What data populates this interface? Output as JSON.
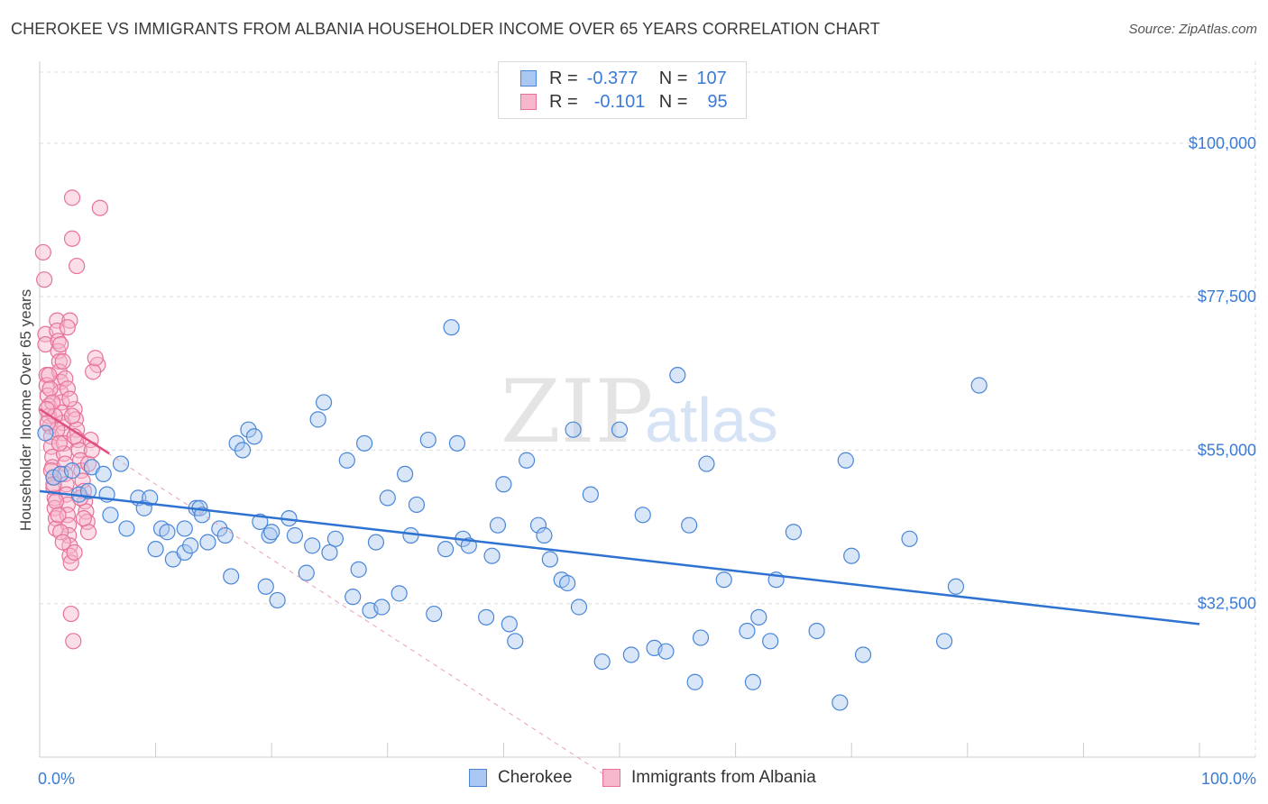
{
  "title": "CHEROKEE VS IMMIGRANTS FROM ALBANIA HOUSEHOLDER INCOME OVER 65 YEARS CORRELATION CHART",
  "source": "Source: ZipAtlas.com",
  "watermark": {
    "zip": "ZIP",
    "atlas": "atlas"
  },
  "legend": {
    "r_label": "R =",
    "n_label": "N =",
    "series1": {
      "r": "-0.377",
      "n": "107"
    },
    "series2": {
      "r": "-0.101",
      "n": "95"
    }
  },
  "colors": {
    "blue_fill": "#a9c7f0",
    "blue_stroke": "#4a86d8",
    "blue_line": "#2e72d2",
    "pink_fill": "#f6b6cb",
    "pink_stroke": "#e8719a",
    "pink_line": "#e0507f",
    "grid": "#dddddd",
    "axis_text": "#3a7bd5"
  },
  "chart_data": {
    "type": "scatter",
    "title": "CHEROKEE VS IMMIGRANTS FROM ALBANIA HOUSEHOLDER INCOME OVER 65 YEARS CORRELATION CHART",
    "xlabel": "",
    "ylabel": "Householder Income Over 65 years",
    "xlim": [
      0,
      100
    ],
    "ylim": [
      10000,
      112000
    ],
    "x_tick_labels": [
      "0.0%",
      "100.0%"
    ],
    "y_ticks": [
      32500,
      55000,
      77500,
      100000
    ],
    "y_tick_labels": [
      "$32,500",
      "$55,000",
      "$77,500",
      "$100,000"
    ],
    "series": [
      {
        "name": "Cherokee",
        "r": -0.377,
        "n": 107,
        "trend": {
          "x": [
            0,
            100
          ],
          "y": [
            49000,
            29500
          ]
        },
        "points": [
          [
            0.5,
            57500
          ],
          [
            1.2,
            51000
          ],
          [
            1.8,
            51500
          ],
          [
            2.8,
            52000
          ],
          [
            3.4,
            48500
          ],
          [
            4.2,
            49000
          ],
          [
            4.5,
            52500
          ],
          [
            5.5,
            51500
          ],
          [
            5.8,
            48500
          ],
          [
            6.1,
            45500
          ],
          [
            7.0,
            53000
          ],
          [
            7.5,
            43500
          ],
          [
            8.5,
            48000
          ],
          [
            9.0,
            46500
          ],
          [
            9.5,
            48000
          ],
          [
            10.0,
            40500
          ],
          [
            10.5,
            43500
          ],
          [
            11.0,
            43000
          ],
          [
            11.5,
            39000
          ],
          [
            12.5,
            40000
          ],
          [
            12.5,
            43500
          ],
          [
            13.0,
            41000
          ],
          [
            13.5,
            46500
          ],
          [
            13.8,
            46500
          ],
          [
            14.0,
            45500
          ],
          [
            14.5,
            41500
          ],
          [
            15.5,
            43500
          ],
          [
            16.0,
            42500
          ],
          [
            16.5,
            36500
          ],
          [
            17.0,
            56000
          ],
          [
            17.5,
            55000
          ],
          [
            18.0,
            58000
          ],
          [
            18.5,
            57000
          ],
          [
            19.0,
            44500
          ],
          [
            19.5,
            35000
          ],
          [
            19.8,
            42500
          ],
          [
            20.0,
            43000
          ],
          [
            20.5,
            33000
          ],
          [
            21.5,
            45000
          ],
          [
            22.0,
            42500
          ],
          [
            23.0,
            37000
          ],
          [
            23.5,
            41000
          ],
          [
            24.0,
            59500
          ],
          [
            24.5,
            62000
          ],
          [
            25.0,
            40000
          ],
          [
            25.5,
            42000
          ],
          [
            26.5,
            53500
          ],
          [
            27.0,
            33500
          ],
          [
            27.5,
            37500
          ],
          [
            28.0,
            56000
          ],
          [
            28.5,
            31500
          ],
          [
            29.0,
            41500
          ],
          [
            29.5,
            32000
          ],
          [
            30.0,
            48000
          ],
          [
            31.0,
            34000
          ],
          [
            31.5,
            51500
          ],
          [
            32.0,
            42500
          ],
          [
            32.5,
            47000
          ],
          [
            33.5,
            56500
          ],
          [
            34.0,
            31000
          ],
          [
            35.0,
            40500
          ],
          [
            35.5,
            73000
          ],
          [
            36.0,
            56000
          ],
          [
            36.5,
            42000
          ],
          [
            37.0,
            41000
          ],
          [
            38.5,
            30500
          ],
          [
            39.0,
            39500
          ],
          [
            39.5,
            44000
          ],
          [
            40.0,
            50000
          ],
          [
            40.5,
            29500
          ],
          [
            41.0,
            27000
          ],
          [
            42.0,
            53500
          ],
          [
            43.0,
            44000
          ],
          [
            43.5,
            42500
          ],
          [
            44.0,
            39000
          ],
          [
            45.0,
            36000
          ],
          [
            45.5,
            35500
          ],
          [
            46.0,
            58000
          ],
          [
            46.5,
            32000
          ],
          [
            47.5,
            48500
          ],
          [
            48.5,
            24000
          ],
          [
            50.0,
            58000
          ],
          [
            51.0,
            25000
          ],
          [
            52.0,
            45500
          ],
          [
            53.0,
            26000
          ],
          [
            54.0,
            25500
          ],
          [
            55.0,
            66000
          ],
          [
            56.0,
            44000
          ],
          [
            56.5,
            21000
          ],
          [
            57.0,
            27500
          ],
          [
            57.5,
            53000
          ],
          [
            59.0,
            36000
          ],
          [
            61.5,
            21000
          ],
          [
            61.0,
            28500
          ],
          [
            62.0,
            30500
          ],
          [
            63.0,
            27000
          ],
          [
            63.5,
            36000
          ],
          [
            65.0,
            43000
          ],
          [
            67.0,
            28500
          ],
          [
            69.0,
            18000
          ],
          [
            69.5,
            53500
          ],
          [
            70.0,
            39500
          ],
          [
            71.0,
            25000
          ],
          [
            75.0,
            42000
          ],
          [
            78.0,
            27000
          ],
          [
            79.0,
            35000
          ],
          [
            81.0,
            64500
          ]
        ]
      },
      {
        "name": "Immigrants from Albania",
        "r": -0.101,
        "n": 95,
        "trend": {
          "x": [
            0,
            6
          ],
          "y": [
            61000,
            54500
          ]
        },
        "trend_extended": {
          "x": [
            0,
            50
          ],
          "y": [
            61000,
            6000
          ]
        },
        "points": [
          [
            0.3,
            84000
          ],
          [
            0.4,
            80000
          ],
          [
            0.5,
            72000
          ],
          [
            0.5,
            70500
          ],
          [
            0.6,
            66000
          ],
          [
            0.6,
            64500
          ],
          [
            0.7,
            63000
          ],
          [
            0.8,
            61500
          ],
          [
            0.8,
            60000
          ],
          [
            0.9,
            58500
          ],
          [
            1.0,
            57000
          ],
          [
            1.0,
            55500
          ],
          [
            1.1,
            54000
          ],
          [
            1.1,
            52500
          ],
          [
            1.2,
            51000
          ],
          [
            1.2,
            49500
          ],
          [
            1.3,
            48000
          ],
          [
            1.3,
            46500
          ],
          [
            1.4,
            45000
          ],
          [
            1.4,
            43500
          ],
          [
            1.5,
            74000
          ],
          [
            1.5,
            72500
          ],
          [
            1.6,
            71000
          ],
          [
            1.6,
            69500
          ],
          [
            1.7,
            68000
          ],
          [
            1.7,
            66500
          ],
          [
            1.8,
            65000
          ],
          [
            1.8,
            63500
          ],
          [
            1.9,
            62000
          ],
          [
            1.9,
            60500
          ],
          [
            2.0,
            59000
          ],
          [
            2.0,
            57500
          ],
          [
            2.1,
            56000
          ],
          [
            2.1,
            54500
          ],
          [
            2.2,
            53000
          ],
          [
            2.2,
            51500
          ],
          [
            2.3,
            50000
          ],
          [
            2.3,
            48500
          ],
          [
            2.4,
            47000
          ],
          [
            2.4,
            45500
          ],
          [
            2.5,
            44000
          ],
          [
            2.5,
            42500
          ],
          [
            2.6,
            41000
          ],
          [
            2.6,
            39500
          ],
          [
            2.7,
            38500
          ],
          [
            2.7,
            31000
          ],
          [
            2.8,
            92000
          ],
          [
            2.8,
            86000
          ],
          [
            2.9,
            27000
          ],
          [
            3.0,
            40000
          ],
          [
            3.0,
            61000
          ],
          [
            3.1,
            59500
          ],
          [
            3.2,
            58000
          ],
          [
            3.3,
            56500
          ],
          [
            3.4,
            55000
          ],
          [
            3.5,
            53500
          ],
          [
            3.6,
            52000
          ],
          [
            3.7,
            50500
          ],
          [
            3.8,
            49000
          ],
          [
            3.9,
            47500
          ],
          [
            4.0,
            46000
          ],
          [
            4.1,
            44500
          ],
          [
            4.2,
            43000
          ],
          [
            2.0,
            68000
          ],
          [
            2.2,
            65500
          ],
          [
            2.4,
            64000
          ],
          [
            2.6,
            62500
          ],
          [
            2.8,
            60000
          ],
          [
            3.0,
            57000
          ],
          [
            1.0,
            52000
          ],
          [
            1.2,
            50000
          ],
          [
            1.4,
            47500
          ],
          [
            1.6,
            45500
          ],
          [
            1.8,
            43000
          ],
          [
            2.0,
            41500
          ],
          [
            0.8,
            66000
          ],
          [
            0.9,
            64000
          ],
          [
            1.1,
            62000
          ],
          [
            1.3,
            60000
          ],
          [
            1.5,
            58000
          ],
          [
            1.7,
            56000
          ],
          [
            3.2,
            82000
          ],
          [
            5.2,
            90500
          ],
          [
            5.0,
            67500
          ],
          [
            4.6,
            66500
          ],
          [
            4.8,
            68500
          ],
          [
            4.4,
            56500
          ],
          [
            4.2,
            53000
          ],
          [
            2.6,
            74000
          ],
          [
            2.4,
            73000
          ],
          [
            1.8,
            70500
          ],
          [
            0.6,
            61000
          ],
          [
            0.7,
            59000
          ],
          [
            3.5,
            48000
          ],
          [
            3.8,
            45000
          ],
          [
            4.5,
            55000
          ]
        ]
      }
    ]
  }
}
